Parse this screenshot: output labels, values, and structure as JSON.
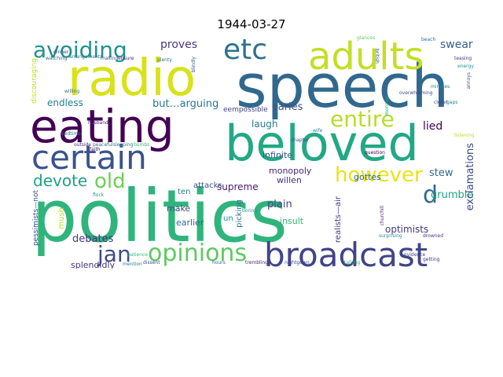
{
  "title": "1944-03-27",
  "words": [
    {
      "text": "politics",
      "color": "#2fb47c"
    },
    {
      "text": "speech",
      "color": "#31688e"
    },
    {
      "text": "beloved",
      "color": "#22a884"
    },
    {
      "text": "radio",
      "color": "#d8e219"
    },
    {
      "text": "eating",
      "color": "#440154"
    },
    {
      "text": "adults",
      "color": "#c2df23"
    },
    {
      "text": "certain",
      "color": "#3b528b"
    },
    {
      "text": "broadcast",
      "color": "#414487"
    },
    {
      "text": "etc",
      "color": "#2c728e"
    },
    {
      "text": "avoiding",
      "color": "#21918c"
    },
    {
      "text": "opinions",
      "color": "#5ec962"
    },
    {
      "text": "entire",
      "color": "#b5de2b"
    },
    {
      "text": "however",
      "color": "#e5e419"
    },
    {
      "text": "jan",
      "color": "#3e4989"
    },
    {
      "text": "old",
      "color": "#6ece58"
    },
    {
      "text": "devote",
      "color": "#1fa187"
    },
    {
      "text": "d",
      "color": "#31688e"
    },
    {
      "text": "debates",
      "color": "#46337e"
    },
    {
      "text": "endless",
      "color": "#26828e"
    },
    {
      "text": "proves",
      "color": "#443983"
    },
    {
      "text": "but…arguing",
      "color": "#2a788e"
    },
    {
      "text": "varies",
      "color": "#3b528b"
    },
    {
      "text": "swear",
      "color": "#355f8d"
    },
    {
      "text": "laugh",
      "color": "#2a788e"
    },
    {
      "text": "lied",
      "color": "#440154"
    },
    {
      "text": "stew",
      "color": "#31688e"
    },
    {
      "text": "grumble",
      "color": "#20a386"
    },
    {
      "text": "argue",
      "color": "#472d7b"
    },
    {
      "text": "exclamations",
      "color": "#3e4989"
    },
    {
      "text": "plain",
      "color": "#404688"
    },
    {
      "text": "insult",
      "color": "#35b779"
    },
    {
      "text": "optimists",
      "color": "#443983"
    },
    {
      "text": "gottes",
      "color": "#31688e"
    },
    {
      "text": "willen",
      "color": "#46327e"
    },
    {
      "text": "monopoly",
      "color": "#482475"
    },
    {
      "text": "infinite",
      "color": "#39568c"
    },
    {
      "text": "supreme",
      "color": "#48186a"
    },
    {
      "text": "make",
      "color": "#404688"
    },
    {
      "text": "earlier",
      "color": "#31688e"
    },
    {
      "text": "attacks",
      "color": "#3b528b"
    },
    {
      "text": "ten",
      "color": "#26828e"
    },
    {
      "text": "splendidly",
      "color": "#46337e"
    },
    {
      "text": "mush",
      "color": "#b5de2b"
    },
    {
      "text": "pessimists—not",
      "color": "#3e4989"
    },
    {
      "text": "realists—air",
      "color": "#453781"
    },
    {
      "text": "picking",
      "color": "#2c728e"
    },
    {
      "text": "un",
      "color": "#21918c"
    },
    {
      "text": "eempossible",
      "color": "#433e85"
    },
    {
      "text": "discouraging",
      "color": "#bddf26"
    },
    {
      "text": "chapter",
      "color": "#3e4989"
    },
    {
      "text": "trembling",
      "color": "#481f70"
    },
    {
      "text": "nightgown",
      "color": "#3e4989"
    },
    {
      "text": "evidence",
      "color": "#404688"
    },
    {
      "text": "outside",
      "color": "#472c7a"
    },
    {
      "text": "peaceful",
      "color": "#31688e"
    },
    {
      "text": "sleeping",
      "color": "#2c728e"
    },
    {
      "text": "bombs",
      "color": "#35b779"
    },
    {
      "text": "churchill",
      "color": "#482878"
    },
    {
      "text": "wife",
      "color": "#26828e"
    },
    {
      "text": "question",
      "color": "#440154"
    },
    {
      "text": "monster",
      "color": "#20a386"
    },
    {
      "text": "annoys",
      "color": "#3b528b"
    },
    {
      "text": "energy",
      "color": "#21918c"
    },
    {
      "text": "teasing",
      "color": "#46327e"
    },
    {
      "text": "beach",
      "color": "#2c728e"
    },
    {
      "text": "british",
      "color": "#3e4989"
    },
    {
      "text": "glances",
      "color": "#5ec962"
    },
    {
      "text": "gaps",
      "color": "#26828e"
    },
    {
      "text": "watching",
      "color": "#31688e"
    },
    {
      "text": "dinner",
      "color": "#404688"
    },
    {
      "text": "arrangements",
      "color": "#2a788e"
    },
    {
      "text": "making",
      "color": "#3b528b"
    },
    {
      "text": "ensure",
      "color": "#482475"
    },
    {
      "text": "hours",
      "color": "#31688e"
    },
    {
      "text": "talking",
      "color": "#35b779"
    },
    {
      "text": "surprising",
      "color": "#21918c"
    },
    {
      "text": "listening",
      "color": "#b5de2b"
    },
    {
      "text": "closet",
      "color": "#404688"
    },
    {
      "text": "overwhelming",
      "color": "#3e4989"
    },
    {
      "text": "minutes",
      "color": "#26828e"
    },
    {
      "text": "getting",
      "color": "#46337e"
    },
    {
      "text": "plenty",
      "color": "#2c728e"
    },
    {
      "text": "blindly",
      "color": "#3b528b"
    },
    {
      "text": "flock",
      "color": "#21918c"
    },
    {
      "text": "faith",
      "color": "#440154"
    },
    {
      "text": "willing",
      "color": "#31688e"
    },
    {
      "text": "husband",
      "color": "#472d7b"
    },
    {
      "text": "mention",
      "color": "#26828e"
    },
    {
      "text": "patience",
      "color": "#35b779"
    },
    {
      "text": "dissent",
      "color": "#3b528b"
    },
    {
      "text": "boring",
      "color": "#21918c"
    },
    {
      "text": "drowned",
      "color": "#46327e"
    },
    {
      "text": "bedtime",
      "color": "#2c728e"
    }
  ]
}
